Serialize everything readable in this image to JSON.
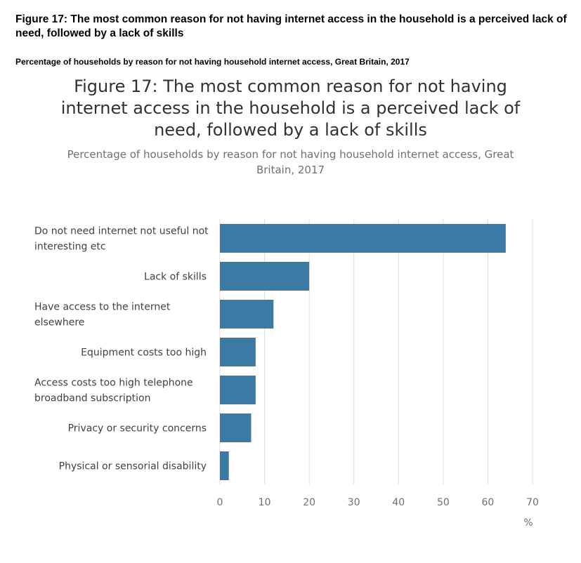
{
  "page": {
    "heading": "Figure 17: The most common reason for not having internet access in the household is a perceived lack of need, followed by a lack of skills",
    "subheading": "Percentage of households by reason for not having household internet access, Great Britain, 2017"
  },
  "chart_data": {
    "type": "bar",
    "orientation": "horizontal",
    "title": "Figure 17: The most common reason for not having internet access in the household is a perceived lack of need, followed by a lack of skills",
    "subtitle": "Percentage of households by reason for not having household internet access, Great Britain, 2017",
    "categories": [
      [
        "Do not need internet not useful not",
        "interesting etc"
      ],
      [
        "Lack of skills"
      ],
      [
        "Have access to the internet",
        "elsewhere"
      ],
      [
        "Equipment costs too high"
      ],
      [
        "Access costs too high telephone",
        "broadband subscription"
      ],
      [
        "Privacy or security concerns"
      ],
      [
        "Physical or sensorial disability"
      ]
    ],
    "values": [
      64,
      20,
      12,
      8,
      8,
      7,
      2
    ],
    "xlim": [
      0,
      70
    ],
    "xticks": [
      "0",
      "10",
      "20",
      "30",
      "40",
      "50",
      "60",
      "70"
    ],
    "xunit": "%",
    "grid": true,
    "bar_color": "#3b7aa4",
    "grid_color": "#e2e2e3"
  }
}
